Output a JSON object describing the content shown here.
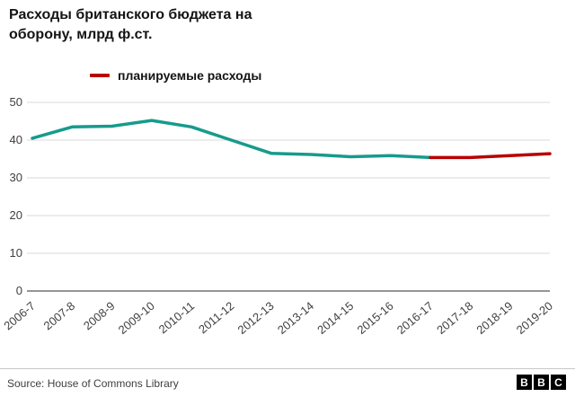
{
  "title": "Расходы британского бюджета на\nоборону, млрд ф.ст.",
  "legend": {
    "label": "планируемые расходы",
    "color": "#b80000"
  },
  "footer": {
    "source": "Source: House of Commons Library",
    "logo_letters": [
      "B",
      "B",
      "C"
    ]
  },
  "colors": {
    "actual_line": "#169b8c",
    "planned_line": "#b80000",
    "gridline": "#d9d9d9",
    "zeroline": "#2b2b2b"
  },
  "chart_data": {
    "type": "line",
    "title": "Расходы британского бюджета на оборону, млрд ф.ст.",
    "categories": [
      "2006-7",
      "2007-8",
      "2008-9",
      "2009-10",
      "2010-11",
      "2011-12",
      "2012-13",
      "2013-14",
      "2014-15",
      "2015-16",
      "2016-17",
      "2017-18",
      "2018-19",
      "2019-20"
    ],
    "series": [
      {
        "name": "",
        "color": "#169b8c",
        "values": [
          40.5,
          43.5,
          43.7,
          45.2,
          43.5,
          40.0,
          36.5,
          36.2,
          35.6,
          35.9,
          35.4,
          null,
          null,
          null
        ]
      },
      {
        "name": "планируемые расходы",
        "color": "#b80000",
        "values": [
          null,
          null,
          null,
          null,
          null,
          null,
          null,
          null,
          null,
          null,
          35.4,
          35.4,
          35.9,
          36.4
        ]
      }
    ],
    "xlabel": "",
    "ylabel": "",
    "ylim": [
      0,
      50
    ],
    "yticks": [
      0,
      10,
      20,
      30,
      40,
      50
    ],
    "grid": true,
    "legend_position": "top-left"
  }
}
